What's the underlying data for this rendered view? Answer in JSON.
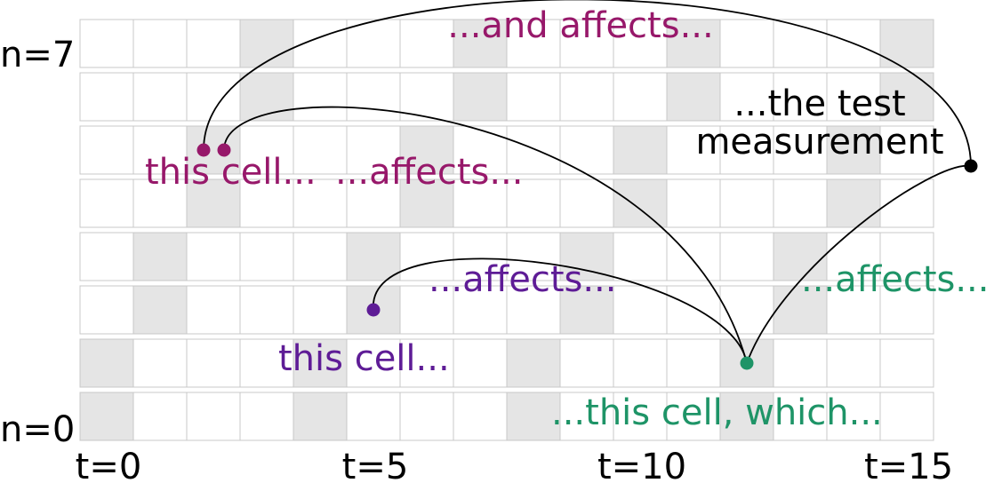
{
  "grid": {
    "columns": 16,
    "rows": 8,
    "shaded_cells": [
      {
        "row": 7,
        "cols": [
          3,
          7,
          11,
          15
        ]
      },
      {
        "row": 6,
        "cols": [
          3,
          7,
          11,
          15
        ]
      },
      {
        "row": 5,
        "cols": [
          2,
          6,
          10,
          14
        ]
      },
      {
        "row": 4,
        "cols": [
          2,
          6,
          10,
          14
        ]
      },
      {
        "row": 3,
        "cols": [
          1,
          5,
          9,
          13
        ]
      },
      {
        "row": 2,
        "cols": [
          1,
          5,
          9,
          13
        ]
      },
      {
        "row": 1,
        "cols": [
          0,
          4,
          8,
          12
        ]
      },
      {
        "row": 0,
        "cols": [
          0,
          4,
          8,
          12
        ]
      }
    ],
    "row_labels": [
      "n=7",
      "n=0"
    ],
    "col_labels": [
      "t=0",
      "t=5",
      "t=10",
      "t=15"
    ]
  },
  "colors": {
    "magenta": "#97186a",
    "purple": "#5e1c96",
    "green": "#1e9467",
    "black": "#000000",
    "shade": "#e5e5e5",
    "border": "#c8c8c8"
  },
  "annotations": {
    "and_affects": "...and affects...",
    "test_measurement_1": "...the test",
    "test_measurement_2": "measurement",
    "this_cell_magenta": "this cell...",
    "affects_magenta": "...affects...",
    "affects_purple": "...affects...",
    "this_cell_purple": "this cell...",
    "affects_green": "...affects...",
    "this_cell_which": "...this cell, which..."
  }
}
